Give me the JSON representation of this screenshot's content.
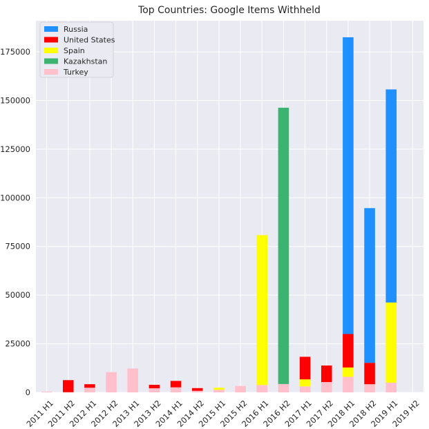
{
  "chart_data": {
    "type": "bar",
    "stacked": true,
    "title": "Top Countries: Google Items Withheld",
    "xlabel": "",
    "ylabel": "",
    "categories": [
      "2011 H1",
      "2011 H2",
      "2012 H1",
      "2012 H2",
      "2013 H1",
      "2013 H2",
      "2014 H1",
      "2014 H2",
      "2015 H1",
      "2015 H2",
      "2016 H1",
      "2016 H2",
      "2017 H1",
      "2017 H2",
      "2018 H1",
      "2018 H2",
      "2019 H1",
      "2019 H2"
    ],
    "yticks": [
      "0",
      "25000",
      "50000",
      "75000",
      "100000",
      "125000",
      "150000",
      "175000"
    ],
    "ylim": [
      0,
      191000
    ],
    "grid": true,
    "legend_position": "top-left",
    "background_color": "#EAEAF2",
    "series": [
      {
        "name": "Turkey",
        "color": "#FFC0CB",
        "values": [
          400,
          100,
          2400,
          10400,
          12300,
          2100,
          2600,
          800,
          1300,
          3300,
          3800,
          4300,
          3100,
          5300,
          8000,
          4200,
          5000,
          0
        ]
      },
      {
        "name": "Kazakhstan",
        "color": "#3CB371",
        "values": [
          0,
          0,
          0,
          0,
          0,
          0,
          0,
          0,
          0,
          0,
          0,
          142000,
          0,
          0,
          0,
          0,
          0,
          0
        ]
      },
      {
        "name": "Spain",
        "color": "#FFFF00",
        "values": [
          0,
          0,
          0,
          0,
          0,
          0,
          0,
          0,
          1100,
          0,
          77000,
          0,
          3600,
          0,
          4800,
          0,
          41200,
          0
        ]
      },
      {
        "name": "United States",
        "color": "#FF0000",
        "values": [
          0,
          6200,
          1800,
          0,
          0,
          1800,
          3300,
          1400,
          0,
          0,
          0,
          0,
          11600,
          8500,
          17200,
          11000,
          0,
          0
        ]
      },
      {
        "name": "Russia",
        "color": "#1E90FF",
        "values": [
          0,
          0,
          0,
          0,
          0,
          0,
          0,
          0,
          0,
          0,
          0,
          0,
          0,
          0,
          152500,
          79500,
          109500,
          0
        ]
      }
    ],
    "legend": [
      "Russia",
      "United States",
      "Spain",
      "Kazakhstan",
      "Turkey"
    ]
  }
}
